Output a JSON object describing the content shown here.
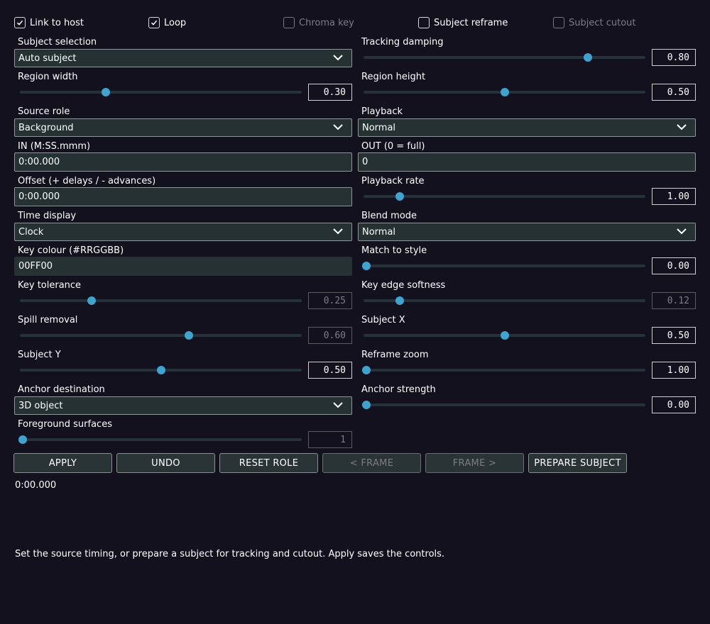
{
  "toggles": [
    {
      "label": "Link to host",
      "checked": true,
      "enabled": true
    },
    {
      "label": "Loop",
      "checked": true,
      "enabled": true
    },
    {
      "label": "Chroma key",
      "checked": false,
      "enabled": false
    },
    {
      "label": "Subject reframe",
      "checked": false,
      "enabled": true
    },
    {
      "label": "Subject cutout",
      "checked": false,
      "enabled": false
    }
  ],
  "controls": {
    "subject_selection": {
      "label": "Subject selection",
      "value": "Auto subject"
    },
    "tracking_damping": {
      "label": "Tracking damping",
      "value": "0.80",
      "level": 0.8
    },
    "region_width": {
      "label": "Region width",
      "value": "0.30",
      "level": 0.3
    },
    "region_height": {
      "label": "Region height",
      "value": "0.50",
      "level": 0.5
    },
    "source_role": {
      "label": "Source role",
      "value": "Background"
    },
    "playback": {
      "label": "Playback",
      "value": "Normal"
    },
    "in_point": {
      "label": "IN (M:SS.mmm)",
      "value": "0:00.000"
    },
    "out_point": {
      "label": "OUT (0 = full)",
      "value": "0"
    },
    "offset": {
      "label": "Offset (+ delays / - advances)",
      "value": "0:00.000"
    },
    "playback_rate": {
      "label": "Playback rate",
      "value": "1.00",
      "level": 0.125
    },
    "time_display": {
      "label": "Time display",
      "value": "Clock"
    },
    "blend_mode": {
      "label": "Blend mode",
      "value": "Normal"
    },
    "key_colour": {
      "label": "Key colour (#RRGGBB)",
      "value": "00FF00"
    },
    "match_to_style": {
      "label": "Match to style",
      "value": "0.00",
      "level": 0.0
    },
    "key_tolerance": {
      "label": "Key tolerance",
      "value": "0.25",
      "level": 0.25
    },
    "key_edge_softness": {
      "label": "Key edge softness",
      "value": "0.12",
      "level": 0.12
    },
    "spill_removal": {
      "label": "Spill removal",
      "value": "0.60",
      "level": 0.6
    },
    "subject_x": {
      "label": "Subject X",
      "value": "0.50",
      "level": 0.5
    },
    "subject_y": {
      "label": "Subject Y",
      "value": "0.50",
      "level": 0.5
    },
    "reframe_zoom": {
      "label": "Reframe zoom",
      "value": "1.00",
      "level": 0.0
    },
    "anchor_destination": {
      "label": "Anchor destination",
      "value": "3D object"
    },
    "anchor_strength": {
      "label": "Anchor strength",
      "value": "0.00",
      "level": 0.0
    },
    "foreground_surfaces": {
      "label": "Foreground surfaces",
      "value": "1",
      "level": 0.0
    }
  },
  "buttons": {
    "apply": "APPLY",
    "undo": "UNDO",
    "reset_role": "RESET ROLE",
    "prev_frame": "< FRAME",
    "next_frame": "FRAME >",
    "prepare_subject": "PREPARE SUBJECT"
  },
  "status": {
    "time": "0:00.000",
    "hint": "Set the source timing, or prepare a subject for tracking and cutout. Apply saves the controls."
  },
  "colors": {
    "background": "#13111d",
    "field": "#253133",
    "accent": "#3ea3cf"
  },
  "icons": {
    "check": "check-icon",
    "dropdown": "chevron-down-icon"
  }
}
